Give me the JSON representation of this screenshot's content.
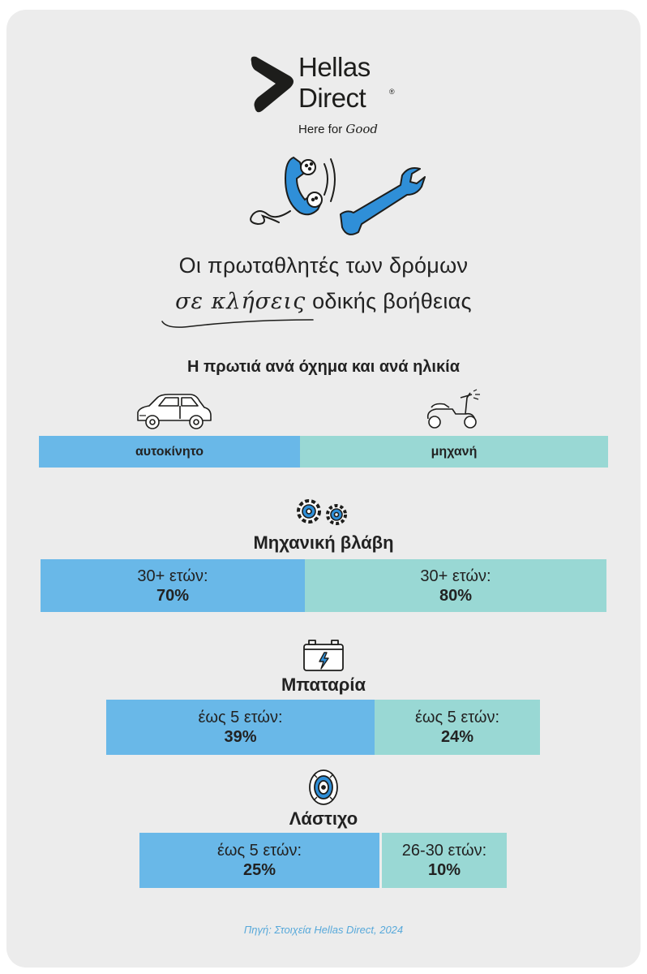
{
  "brand": {
    "name_line1": "Hellas",
    "name_line2": "Direct",
    "registered": "®",
    "tagline_prefix": "Here for",
    "tagline_script": "Good"
  },
  "headline": {
    "line1": "Οι πρωταθλητές των δρόμων",
    "line2_handwritten": "σε κλήσεις",
    "line2_rest": "οδικής βοήθειας"
  },
  "subtitle": "Η πρωτιά ανά όχημα και ανά ηλικία",
  "vehicles": {
    "car": "αυτοκίνητο",
    "motorbike": "μηχανή"
  },
  "categories": [
    {
      "title": "Μηχανική βλάβη",
      "icon": "gears-icon",
      "car": {
        "age": "30+ ετών:",
        "share": "70%"
      },
      "motorbike": {
        "age": "30+ ετών:",
        "share": "80%"
      }
    },
    {
      "title": "Μπαταρία",
      "icon": "battery-icon",
      "car": {
        "age": "έως 5 ετών:",
        "share": "39%"
      },
      "motorbike": {
        "age": "έως 5 ετών:",
        "share": "24%"
      }
    },
    {
      "title": "Λάστιχο",
      "icon": "tire-icon",
      "car": {
        "age": "έως 5 ετών:",
        "share": "25%"
      },
      "motorbike": {
        "age": "26-30 ετών:",
        "share": "10%"
      }
    }
  ],
  "source": "Πηγή: Στοιχεία Hellas Direct, 2024",
  "colors": {
    "car_bar": "#69b8e8",
    "motorbike_bar": "#99d8d4",
    "background": "#ececec",
    "accent": "#2f8fd8"
  }
}
